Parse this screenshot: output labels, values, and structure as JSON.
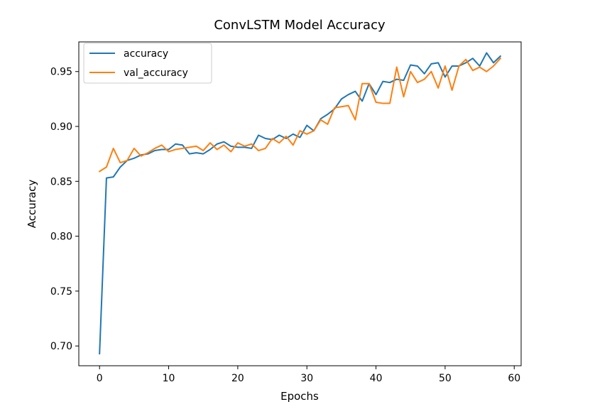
{
  "chart_data": {
    "type": "line",
    "title": "ConvLSTM Model Accuracy",
    "xlabel": "Epochs",
    "ylabel": "Accuracy",
    "xlim": [
      -3,
      61
    ],
    "ylim": [
      0.682,
      0.977
    ],
    "xticks": [
      0,
      10,
      20,
      30,
      40,
      50,
      60
    ],
    "yticks": [
      0.7,
      0.75,
      0.8,
      0.85,
      0.9,
      0.95
    ],
    "xtick_labels": [
      "0",
      "10",
      "20",
      "30",
      "40",
      "50",
      "60"
    ],
    "ytick_labels": [
      "0.70",
      "0.75",
      "0.80",
      "0.85",
      "0.90",
      "0.95"
    ],
    "grid": false,
    "legend": "upper left",
    "x": [
      0,
      1,
      2,
      3,
      4,
      5,
      6,
      7,
      8,
      9,
      10,
      11,
      12,
      13,
      14,
      15,
      16,
      17,
      18,
      19,
      20,
      21,
      22,
      23,
      24,
      25,
      26,
      27,
      28,
      29,
      30,
      31,
      32,
      33,
      34,
      35,
      36,
      37,
      38,
      39,
      40,
      41,
      42,
      43,
      44,
      45,
      46,
      47,
      48,
      49,
      50,
      51,
      52,
      53,
      54,
      55,
      56,
      57,
      58
    ],
    "series": [
      {
        "name": "accuracy",
        "color": "#1f77b4",
        "values": [
          0.693,
          0.853,
          0.854,
          0.863,
          0.869,
          0.871,
          0.874,
          0.875,
          0.878,
          0.879,
          0.879,
          0.884,
          0.883,
          0.875,
          0.876,
          0.875,
          0.879,
          0.884,
          0.886,
          0.882,
          0.881,
          0.881,
          0.88,
          0.892,
          0.889,
          0.888,
          0.892,
          0.889,
          0.893,
          0.89,
          0.901,
          0.896,
          0.907,
          0.911,
          0.916,
          0.925,
          0.929,
          0.932,
          0.923,
          0.939,
          0.929,
          0.941,
          0.94,
          0.943,
          0.942,
          0.956,
          0.955,
          0.948,
          0.957,
          0.958,
          0.945,
          0.955,
          0.955,
          0.958,
          0.962,
          0.955,
          0.967,
          0.958,
          0.964
        ]
      },
      {
        "name": "val_accuracy",
        "color": "#ff7f0e",
        "values": [
          0.859,
          0.863,
          0.88,
          0.867,
          0.869,
          0.88,
          0.873,
          0.876,
          0.88,
          0.883,
          0.877,
          0.879,
          0.88,
          0.881,
          0.882,
          0.878,
          0.885,
          0.879,
          0.883,
          0.877,
          0.885,
          0.882,
          0.884,
          0.878,
          0.88,
          0.889,
          0.885,
          0.891,
          0.883,
          0.896,
          0.893,
          0.896,
          0.906,
          0.902,
          0.917,
          0.918,
          0.919,
          0.906,
          0.939,
          0.939,
          0.922,
          0.921,
          0.921,
          0.954,
          0.927,
          0.95,
          0.94,
          0.943,
          0.95,
          0.935,
          0.955,
          0.933,
          0.955,
          0.961,
          0.951,
          0.954,
          0.95,
          0.955,
          0.962
        ]
      }
    ]
  }
}
